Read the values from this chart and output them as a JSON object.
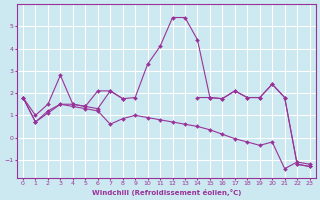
{
  "xlabel": "Windchill (Refroidissement éolien,°C)",
  "background_color": "#cce8f0",
  "grid_color": "#ffffff",
  "line_color": "#993399",
  "xlim": [
    -0.5,
    23.5
  ],
  "ylim": [
    -1.8,
    6.0
  ],
  "yticks": [
    -1,
    0,
    1,
    2,
    3,
    4,
    5
  ],
  "xticks": [
    0,
    1,
    2,
    3,
    4,
    5,
    6,
    7,
    8,
    9,
    10,
    11,
    12,
    13,
    14,
    15,
    16,
    17,
    18,
    19,
    20,
    21,
    22,
    23
  ],
  "lines": [
    {
      "x": [
        0,
        1,
        2,
        3,
        4,
        5,
        6,
        7,
        8,
        9,
        10,
        11,
        12,
        13,
        14,
        15,
        16,
        17,
        18,
        19,
        20,
        21,
        22,
        23
      ],
      "y": [
        1.8,
        0.7,
        1.1,
        1.5,
        1.4,
        1.3,
        1.2,
        0.6,
        0.85,
        1.0,
        0.9,
        0.8,
        0.7,
        0.6,
        0.5,
        0.35,
        0.15,
        -0.05,
        -0.2,
        -0.35,
        -0.2,
        -1.4,
        -1.1,
        -1.2
      ]
    },
    {
      "x": [
        0,
        1,
        2,
        3,
        4,
        5,
        6,
        7,
        8,
        9,
        10,
        11,
        12,
        13,
        14,
        15,
        16,
        17,
        18,
        19,
        20,
        21,
        22,
        23
      ],
      "y": [
        1.8,
        1.0,
        1.5,
        2.8,
        1.5,
        1.4,
        2.1,
        2.1,
        1.75,
        1.8,
        3.3,
        4.1,
        5.4,
        5.4,
        4.4,
        1.8,
        1.75,
        2.1,
        1.8,
        1.8,
        2.4,
        1.8,
        -1.2,
        -1.3
      ]
    },
    {
      "x": [
        0,
        1,
        2,
        3,
        4,
        5,
        6,
        7,
        8
      ],
      "y": [
        1.8,
        0.7,
        1.2,
        1.5,
        1.5,
        1.4,
        1.3,
        2.1,
        1.75
      ]
    },
    {
      "x": [
        14,
        15,
        16,
        17,
        18,
        19,
        20,
        21,
        22,
        23
      ],
      "y": [
        1.8,
        1.8,
        1.75,
        2.1,
        1.8,
        1.8,
        2.4,
        1.8,
        -1.2,
        -1.3
      ]
    }
  ]
}
